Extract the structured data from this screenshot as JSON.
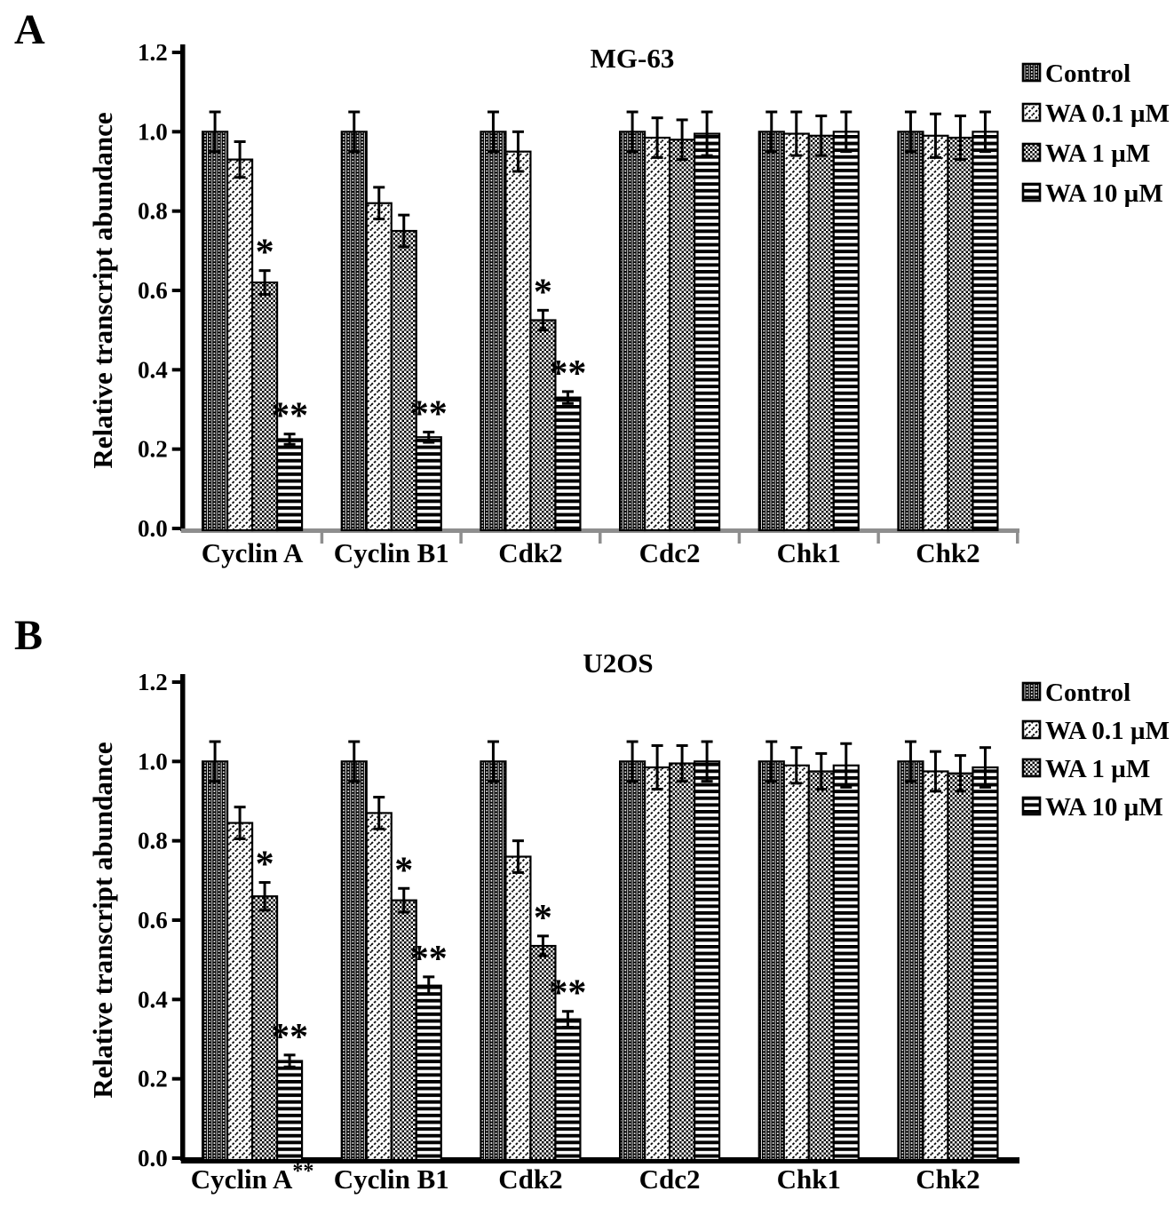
{
  "figure": {
    "panels": [
      {
        "letter": "A",
        "title": "MG-63",
        "ylabel": "Relative transcript abundance"
      },
      {
        "letter": "B",
        "title": "U2OS",
        "ylabel": "Relative transcript abundance"
      }
    ],
    "legend": {
      "items": [
        {
          "label": "Control",
          "pattern": "dotted-grid"
        },
        {
          "label": "WA 0.1 µM",
          "pattern": "diagonal-hatch"
        },
        {
          "label": "WA 1 µM",
          "pattern": "checkerboard"
        },
        {
          "label": "WA 10 µM",
          "pattern": "horizontal-stripes"
        }
      ]
    },
    "colors": {
      "ink": "#000000",
      "paper": "#ffffff",
      "panel_a_baseline": "#8e8e8e",
      "panel_b_baseline": "#000000"
    }
  },
  "chart_data": [
    {
      "type": "bar",
      "panel": "A",
      "title": "MG-63",
      "xlabel": "",
      "ylabel": "Relative transcript abundance",
      "ylim": [
        0,
        1.2
      ],
      "yticks": [
        0,
        0.2,
        0.4,
        0.6,
        0.8,
        1.0,
        1.2
      ],
      "ytick_labels": [
        "0.0",
        "0.2",
        "0.4",
        "0.6",
        "0.8",
        "1.0",
        "1.2"
      ],
      "grid": false,
      "legend_position": "right-top",
      "categories": [
        "Cyclin A",
        "Cyclin B1",
        "Cdk2",
        "Cdc2",
        "Chk1",
        "Chk2"
      ],
      "category_suffixes": [
        "",
        "",
        "",
        "",
        "",
        ""
      ],
      "series": [
        {
          "name": "Control",
          "pattern": "dotted-grid",
          "values": [
            1.0,
            1.0,
            1.0,
            1.0,
            1.0,
            1.0
          ],
          "errors": [
            0.05,
            0.05,
            0.05,
            0.05,
            0.05,
            0.05
          ]
        },
        {
          "name": "WA 0.1 µM",
          "pattern": "diagonal-hatch",
          "values": [
            0.93,
            0.82,
            0.95,
            0.985,
            0.995,
            0.99
          ],
          "errors": [
            0.045,
            0.04,
            0.05,
            0.05,
            0.055,
            0.055
          ]
        },
        {
          "name": "WA 1 µM",
          "pattern": "checkerboard",
          "values": [
            0.62,
            0.75,
            0.525,
            0.98,
            0.99,
            0.985
          ],
          "errors": [
            0.03,
            0.04,
            0.025,
            0.05,
            0.05,
            0.055
          ]
        },
        {
          "name": "WA 10 µM",
          "pattern": "horizontal-stripes",
          "values": [
            0.225,
            0.23,
            0.33,
            0.995,
            1.0,
            1.0
          ],
          "errors": [
            0.013,
            0.013,
            0.015,
            0.055,
            0.05,
            0.05
          ]
        }
      ],
      "significance": [
        {
          "category_index": 0,
          "series_index": 2,
          "marker": "*"
        },
        {
          "category_index": 0,
          "series_index": 3,
          "marker": "**"
        },
        {
          "category_index": 1,
          "series_index": 3,
          "marker": "**"
        },
        {
          "category_index": 2,
          "series_index": 2,
          "marker": "*"
        },
        {
          "category_index": 2,
          "series_index": 3,
          "marker": "**"
        }
      ]
    },
    {
      "type": "bar",
      "panel": "B",
      "title": "U2OS",
      "xlabel": "",
      "ylabel": "Relative transcript abundance",
      "ylim": [
        0,
        1.2
      ],
      "yticks": [
        0,
        0.2,
        0.4,
        0.6,
        0.8,
        1.0,
        1.2
      ],
      "ytick_labels": [
        "0.0",
        "0.2",
        "0.4",
        "0.6",
        "0.8",
        "1.0",
        "1.2"
      ],
      "grid": false,
      "legend_position": "right-top",
      "categories": [
        "Cyclin A",
        "Cyclin B1",
        "Cdk2",
        "Cdc2",
        "Chk1",
        "Chk2"
      ],
      "category_suffixes": [
        "**",
        "",
        "",
        "",
        "",
        ""
      ],
      "series": [
        {
          "name": "Control",
          "pattern": "dotted-grid",
          "values": [
            1.0,
            1.0,
            1.0,
            1.0,
            1.0,
            1.0
          ],
          "errors": [
            0.05,
            0.05,
            0.05,
            0.05,
            0.05,
            0.05
          ]
        },
        {
          "name": "WA 0.1 µM",
          "pattern": "diagonal-hatch",
          "values": [
            0.845,
            0.87,
            0.76,
            0.985,
            0.99,
            0.975
          ],
          "errors": [
            0.04,
            0.04,
            0.04,
            0.055,
            0.045,
            0.05
          ]
        },
        {
          "name": "WA 1 µM",
          "pattern": "checkerboard",
          "values": [
            0.66,
            0.65,
            0.535,
            0.995,
            0.975,
            0.97
          ],
          "errors": [
            0.035,
            0.03,
            0.025,
            0.045,
            0.045,
            0.045
          ]
        },
        {
          "name": "WA 10 µM",
          "pattern": "horizontal-stripes",
          "values": [
            0.245,
            0.435,
            0.35,
            1.0,
            0.99,
            0.985
          ],
          "errors": [
            0.015,
            0.022,
            0.02,
            0.05,
            0.055,
            0.05
          ]
        }
      ],
      "significance": [
        {
          "category_index": 0,
          "series_index": 2,
          "marker": "*"
        },
        {
          "category_index": 0,
          "series_index": 3,
          "marker": "**"
        },
        {
          "category_index": 1,
          "series_index": 2,
          "marker": "*"
        },
        {
          "category_index": 1,
          "series_index": 3,
          "marker": "**"
        },
        {
          "category_index": 2,
          "series_index": 2,
          "marker": "*"
        },
        {
          "category_index": 2,
          "series_index": 3,
          "marker": "**"
        }
      ]
    }
  ]
}
